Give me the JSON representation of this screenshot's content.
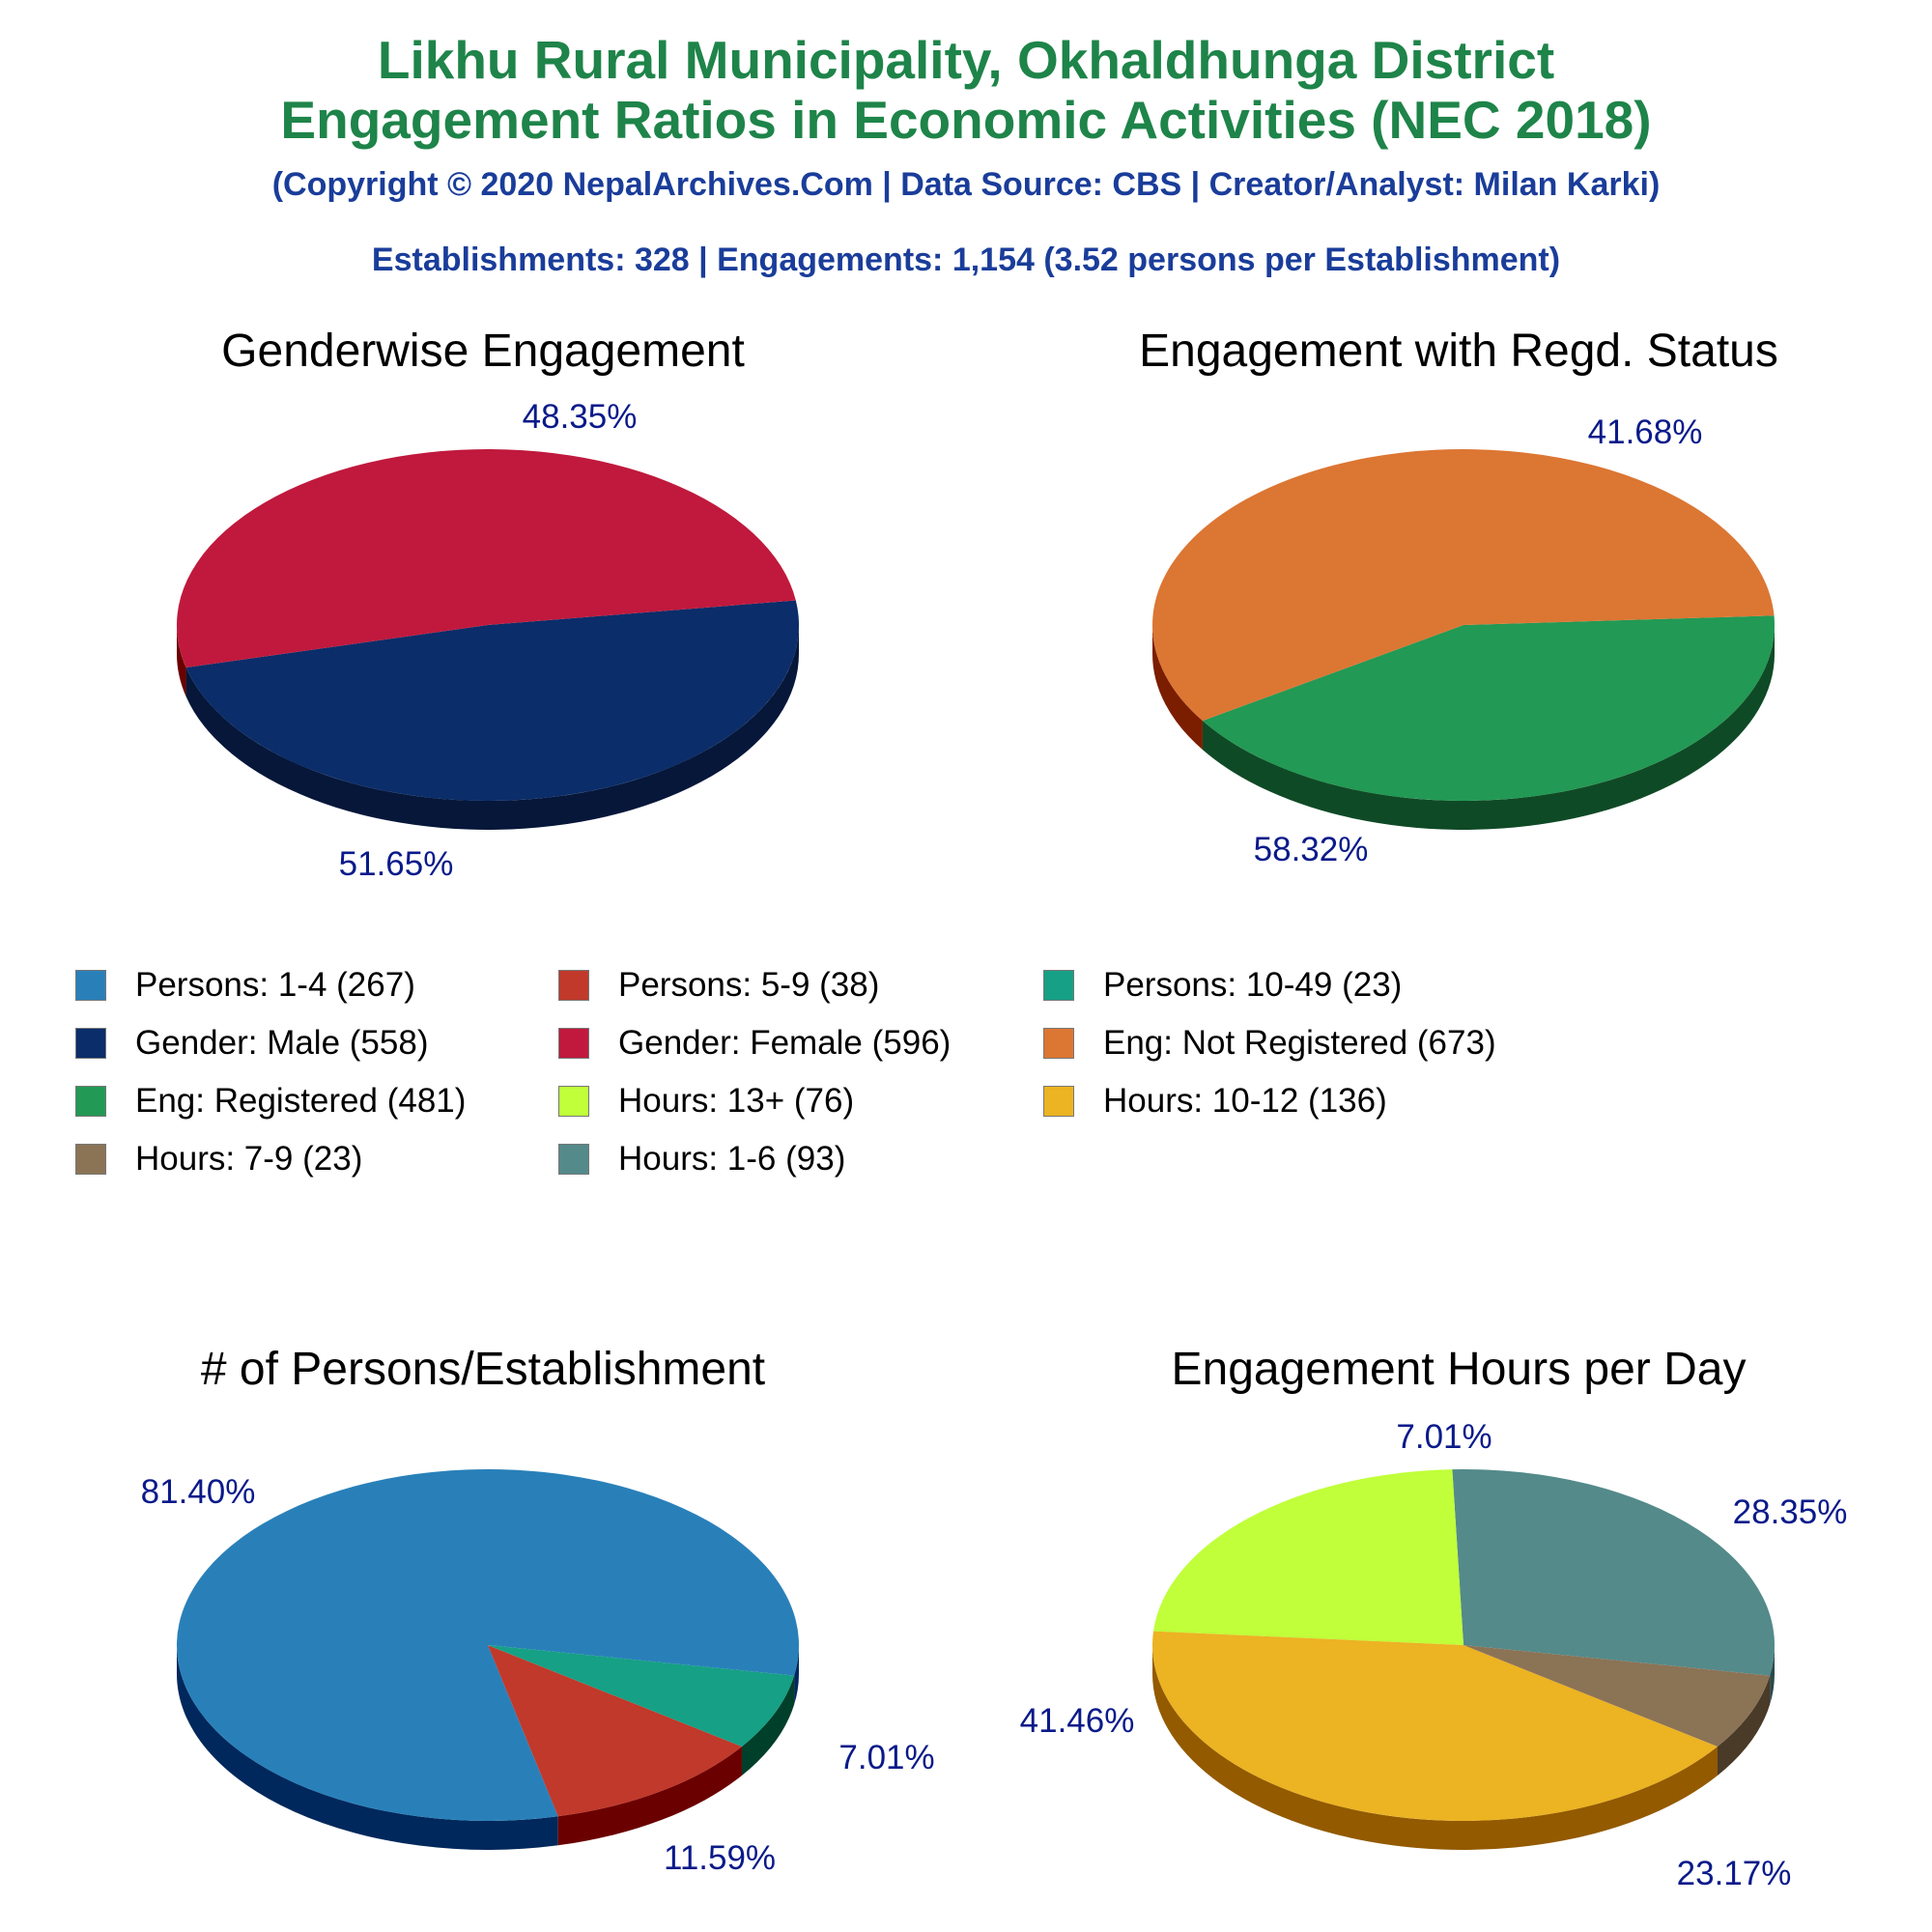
{
  "header": {
    "title_line1": "Likhu Rural Municipality, Okhaldhunga District",
    "title_line2": "Engagement Ratios in Economic Activities (NEC 2018)",
    "copyright": "(Copyright © 2020 NepalArchives.Com | Data Source: CBS | Creator/Analyst: Milan Karki)",
    "summary": "Establishments: 328 | Engagements: 1,154 (3.52 persons per Establishment)"
  },
  "chart_data": [
    {
      "type": "pie",
      "title": "Genderwise Engagement",
      "slices": [
        {
          "name": "Gender: Male",
          "value": 558,
          "percent_label": "48.35%",
          "color": "#0b2d69",
          "side_color": "#06173a"
        },
        {
          "name": "Gender: Female",
          "value": 596,
          "percent_label": "51.65%",
          "color": "#c0193d",
          "side_color": "#6b0000"
        }
      ]
    },
    {
      "type": "pie",
      "title": "Engagement with Regd. Status",
      "slices": [
        {
          "name": "Eng: Registered",
          "value": 481,
          "percent_label": "41.68%",
          "color": "#229954",
          "side_color": "#0f4a26"
        },
        {
          "name": "Eng: Not Registered",
          "value": 673,
          "percent_label": "58.32%",
          "color": "#dc7633",
          "side_color": "#7b1e00"
        }
      ]
    },
    {
      "type": "pie",
      "title": "# of Persons/Establishment",
      "slices": [
        {
          "name": "Persons: 1-4",
          "value": 267,
          "percent_label": "81.40%",
          "color": "#2980b9",
          "side_color": "#00285c"
        },
        {
          "name": "Persons: 5-9",
          "value": 38,
          "percent_label": "11.59%",
          "color": "#c0392b",
          "side_color": "#6b0000"
        },
        {
          "name": "Persons: 10-49",
          "value": 23,
          "percent_label": "7.01%",
          "color": "#16a085",
          "side_color": "#003f2a"
        }
      ]
    },
    {
      "type": "pie",
      "title": "Engagement Hours per Day",
      "slices": [
        {
          "name": "Hours: 1-6",
          "value": 93,
          "percent_label": "28.35%",
          "color": "#548a8a",
          "side_color": "#2b4a4a"
        },
        {
          "name": "Hours: 13+",
          "value": 76,
          "percent_label": "23.17%",
          "color": "#c0ff3a",
          "side_color": "#66a800"
        },
        {
          "name": "Hours: 10-12",
          "value": 136,
          "percent_label": "41.46%",
          "color": "#ecb322",
          "side_color": "#935a00"
        },
        {
          "name": "Hours: 7-9",
          "value": 23,
          "percent_label": "7.01%",
          "color": "#8b7355",
          "side_color": "#4a3a28"
        }
      ]
    }
  ],
  "legend": [
    {
      "label": "Persons: 1-4 (267)",
      "color": "#2980b9"
    },
    {
      "label": "Persons: 5-9 (38)",
      "color": "#c0392b"
    },
    {
      "label": "Persons: 10-49 (23)",
      "color": "#16a085"
    },
    {
      "label": "Gender: Male (558)",
      "color": "#0b2d69"
    },
    {
      "label": "Gender: Female (596)",
      "color": "#c0193d"
    },
    {
      "label": "Eng: Not Registered (673)",
      "color": "#dc7633"
    },
    {
      "label": "Eng: Registered (481)",
      "color": "#229954"
    },
    {
      "label": "Hours: 13+ (76)",
      "color": "#c0ff3a"
    },
    {
      "label": "Hours: 10-12 (136)",
      "color": "#ecb322"
    },
    {
      "label": "Hours: 7-9 (23)",
      "color": "#8b7355"
    },
    {
      "label": "Hours: 1-6 (93)",
      "color": "#548a8a"
    }
  ]
}
